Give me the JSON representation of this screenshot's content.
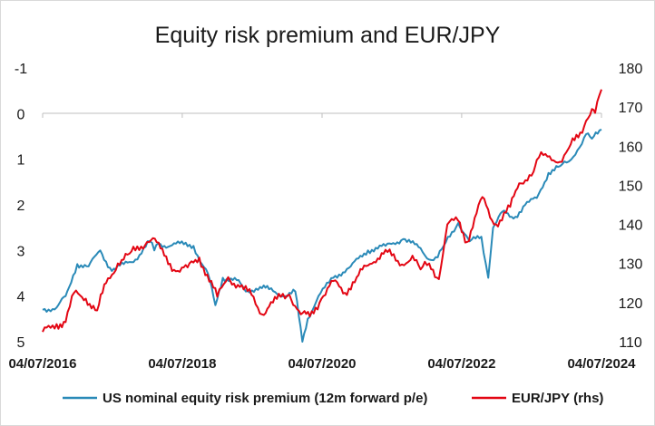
{
  "chart_data": {
    "type": "line",
    "title": "Equity risk premium and EUR/JPY",
    "x_ticks": [
      "04/07/2016",
      "04/07/2018",
      "04/07/2020",
      "04/07/2022",
      "04/07/2024"
    ],
    "y_left": {
      "ticks": [
        "-1",
        "0",
        "1",
        "2",
        "3",
        "4",
        "5"
      ],
      "range": [
        -1,
        5
      ],
      "inverted": true
    },
    "y_right": {
      "ticks": [
        "180",
        "170",
        "160",
        "150",
        "140",
        "130",
        "120",
        "110"
      ],
      "range": [
        110,
        180
      ]
    },
    "grid": false,
    "legend_position": "bottom",
    "series": [
      {
        "name": "US nominal equity risk premium (12m forward p/e)",
        "axis": "left",
        "color": "#2a8ab8",
        "points": [
          [
            "2016-07-04",
            4.3
          ],
          [
            "2016-09-15",
            4.25
          ],
          [
            "2016-11-01",
            4.0
          ],
          [
            "2016-11-20",
            3.8
          ],
          [
            "2017-01-01",
            3.3
          ],
          [
            "2017-03-01",
            3.35
          ],
          [
            "2017-05-01",
            3.0
          ],
          [
            "2017-07-01",
            3.45
          ],
          [
            "2017-09-01",
            3.3
          ],
          [
            "2017-11-01",
            3.2
          ],
          [
            "2018-01-15",
            2.8
          ],
          [
            "2018-02-08",
            3.0
          ],
          [
            "2018-03-01",
            2.85
          ],
          [
            "2018-04-01",
            2.9
          ],
          [
            "2018-06-01",
            2.85
          ],
          [
            "2018-09-01",
            2.9
          ],
          [
            "2018-10-15",
            3.3
          ],
          [
            "2018-11-15",
            3.5
          ],
          [
            "2018-12-24",
            4.2
          ],
          [
            "2019-02-01",
            3.6
          ],
          [
            "2019-04-15",
            3.65
          ],
          [
            "2019-06-01",
            3.9
          ],
          [
            "2019-08-15",
            3.8
          ],
          [
            "2019-10-01",
            3.85
          ],
          [
            "2019-12-15",
            4.0
          ],
          [
            "2020-02-15",
            3.9
          ],
          [
            "2020-03-23",
            5.0
          ],
          [
            "2020-04-20",
            4.5
          ],
          [
            "2020-06-15",
            4.0
          ],
          [
            "2020-09-01",
            3.6
          ],
          [
            "2020-12-01",
            3.35
          ],
          [
            "2021-03-01",
            3.0
          ],
          [
            "2021-06-01",
            2.9
          ],
          [
            "2021-09-01",
            2.75
          ],
          [
            "2021-12-01",
            2.95
          ],
          [
            "2022-01-15",
            3.2
          ],
          [
            "2022-03-01",
            3.15
          ],
          [
            "2022-04-01",
            2.9
          ],
          [
            "2022-06-16",
            2.4
          ],
          [
            "2022-08-15",
            2.8
          ],
          [
            "2022-10-15",
            2.7
          ],
          [
            "2022-11-20",
            3.6
          ],
          [
            "2022-12-15",
            2.5
          ],
          [
            "2023-02-01",
            2.15
          ],
          [
            "2023-04-01",
            2.3
          ],
          [
            "2023-06-01",
            2.0
          ],
          [
            "2023-08-01",
            1.85
          ],
          [
            "2023-10-01",
            1.3
          ],
          [
            "2023-12-01",
            1.15
          ],
          [
            "2024-01-15",
            1.05
          ],
          [
            "2024-03-01",
            0.8
          ],
          [
            "2024-04-15",
            0.45
          ],
          [
            "2024-05-15",
            0.55
          ],
          [
            "2024-07-04",
            0.35
          ]
        ]
      },
      {
        "name": "EUR/JPY (rhs)",
        "axis": "right",
        "color": "#e30613",
        "points": [
          [
            "2016-07-04",
            112.5
          ],
          [
            "2016-09-15",
            114.5
          ],
          [
            "2016-11-01",
            115
          ],
          [
            "2016-12-15",
            122.5
          ],
          [
            "2017-02-15",
            121
          ],
          [
            "2017-04-15",
            118
          ],
          [
            "2017-06-01",
            125
          ],
          [
            "2017-08-01",
            130
          ],
          [
            "2017-10-01",
            132.5
          ],
          [
            "2018-01-01",
            135.5
          ],
          [
            "2018-02-01",
            136.5
          ],
          [
            "2018-04-01",
            132
          ],
          [
            "2018-06-01",
            128
          ],
          [
            "2018-08-01",
            129
          ],
          [
            "2018-10-01",
            131.5
          ],
          [
            "2019-01-03",
            121.5
          ],
          [
            "2019-03-01",
            126.5
          ],
          [
            "2019-05-01",
            124
          ],
          [
            "2019-07-01",
            122
          ],
          [
            "2019-08-25",
            117
          ],
          [
            "2019-10-01",
            119
          ],
          [
            "2019-12-01",
            121.5
          ],
          [
            "2020-01-15",
            122
          ],
          [
            "2020-03-15",
            117
          ],
          [
            "2020-05-01",
            116.5
          ],
          [
            "2020-07-01",
            121
          ],
          [
            "2020-09-01",
            125.5
          ],
          [
            "2020-11-01",
            122.5
          ],
          [
            "2021-01-01",
            126.5
          ],
          [
            "2021-03-01",
            129.5
          ],
          [
            "2021-06-01",
            133.5
          ],
          [
            "2021-08-15",
            129.5
          ],
          [
            "2021-10-20",
            132
          ],
          [
            "2021-12-01",
            128.5
          ],
          [
            "2022-01-15",
            130
          ],
          [
            "2022-03-07",
            126
          ],
          [
            "2022-04-20",
            140
          ],
          [
            "2022-06-15",
            141
          ],
          [
            "2022-08-01",
            135.5
          ],
          [
            "2022-10-20",
            147
          ],
          [
            "2022-12-20",
            140
          ],
          [
            "2023-01-20",
            141
          ],
          [
            "2023-03-15",
            144.5
          ],
          [
            "2023-05-01",
            150.5
          ],
          [
            "2023-07-15",
            153.5
          ],
          [
            "2023-08-01",
            156.5
          ],
          [
            "2023-09-15",
            158
          ],
          [
            "2023-12-10",
            156
          ],
          [
            "2024-01-15",
            159.5
          ],
          [
            "2024-03-15",
            163.5
          ],
          [
            "2024-04-15",
            166.5
          ],
          [
            "2024-05-15",
            169.5
          ],
          [
            "2024-06-01",
            168.5
          ],
          [
            "2024-07-04",
            174.5
          ]
        ]
      }
    ]
  }
}
